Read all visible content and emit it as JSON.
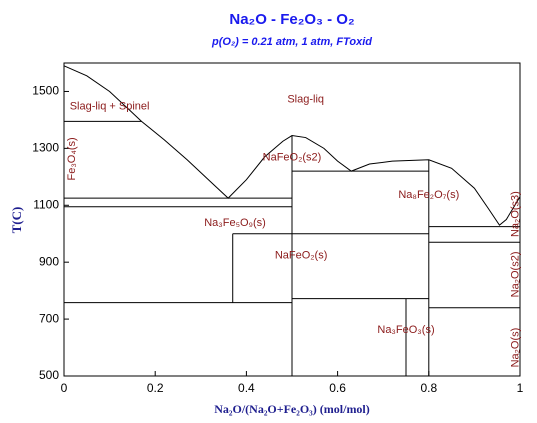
{
  "chart_data": {
    "type": "line",
    "title": "Na₂O - Fe₂O₃ - O₂",
    "subtitle": "p(O₂) = 0.21 atm, 1 atm, FToxid",
    "x_label": "Na₂O/(Na₂O+Fe₂O₃) (mol/mol)",
    "y_label": "T(C)",
    "xlim": [
      0,
      1
    ],
    "ylim": [
      500,
      1600
    ],
    "xticks": [
      0,
      0.2,
      0.4,
      0.6,
      0.8,
      1
    ],
    "yticks": [
      500,
      700,
      900,
      1100,
      1300,
      1500
    ],
    "color": "#000000",
    "series": [
      {
        "x": [
          0,
          0.05,
          0.1,
          0.14,
          0.17,
          0.22,
          0.27,
          0.32,
          0.36,
          0.4,
          0.44,
          0.48,
          0.5,
          0.53,
          0.57,
          0.6,
          0.63,
          0.67,
          0.72,
          0.8,
          0.85,
          0.9,
          0.93,
          0.955,
          0.97,
          0.985,
          1
        ],
        "y": [
          1590,
          1555,
          1500,
          1440,
          1395,
          1330,
          1260,
          1185,
          1125,
          1190,
          1270,
          1325,
          1345,
          1338,
          1300,
          1255,
          1220,
          1245,
          1255,
          1260,
          1230,
          1160,
          1090,
          1030,
          1050,
          1090,
          1130
        ]
      },
      {
        "x": [
          0,
          0.17
        ],
        "y": [
          1395,
          1395
        ]
      },
      {
        "x": [
          0,
          0.5
        ],
        "y": [
          1125,
          1125
        ]
      },
      {
        "x": [
          0,
          0.5
        ],
        "y": [
          1095,
          1095
        ]
      },
      {
        "x": [
          0.37,
          0.8
        ],
        "y": [
          1000,
          1000
        ]
      },
      {
        "x": [
          0.37,
          0.37
        ],
        "y": [
          1000,
          758
        ]
      },
      {
        "x": [
          0,
          0.5
        ],
        "y": [
          758,
          758
        ]
      },
      {
        "x": [
          0.5,
          0.5
        ],
        "y": [
          1345,
          500
        ]
      },
      {
        "x": [
          0.5,
          0.8
        ],
        "y": [
          1220,
          1220
        ]
      },
      {
        "x": [
          0.8,
          0.8
        ],
        "y": [
          1260,
          500
        ]
      },
      {
        "x": [
          0.5,
          0.8
        ],
        "y": [
          772,
          772
        ]
      },
      {
        "x": [
          0.75,
          0.75
        ],
        "y": [
          772,
          500
        ]
      },
      {
        "x": [
          0.8,
          1
        ],
        "y": [
          1025,
          1025
        ]
      },
      {
        "x": [
          0.8,
          1
        ],
        "y": [
          970,
          970
        ]
      },
      {
        "x": [
          0.8,
          1
        ],
        "y": [
          740,
          740
        ]
      }
    ],
    "annotations": [
      {
        "text": "Slag-liq + Spinel",
        "x": 0.1,
        "y": 1447
      },
      {
        "text": "Slag-liq",
        "x": 0.53,
        "y": 1472
      },
      {
        "text": "Fe₃O₄(s)",
        "x": 0.018,
        "y": 1263,
        "vertical": true
      },
      {
        "text": "NaFeO₂(s2)",
        "x": 0.5,
        "y": 1267
      },
      {
        "text": "Na₈Fe₂O₇(s)",
        "x": 0.8,
        "y": 1136
      },
      {
        "text": "Na₃Fe₅O₉(s)",
        "x": 0.375,
        "y": 1037
      },
      {
        "text": "NaFeO₂(s)",
        "x": 0.52,
        "y": 924
      },
      {
        "text": "Na₃FeO₃(s)",
        "x": 0.75,
        "y": 662
      },
      {
        "text": "Na₂O(s3)",
        "x": 0.99,
        "y": 1069,
        "vertical": true
      },
      {
        "text": "Na₂O(s2)",
        "x": 0.99,
        "y": 857,
        "vertical": true
      },
      {
        "text": "Na₂O(s)",
        "x": 0.99,
        "y": 600,
        "vertical": true
      }
    ]
  }
}
